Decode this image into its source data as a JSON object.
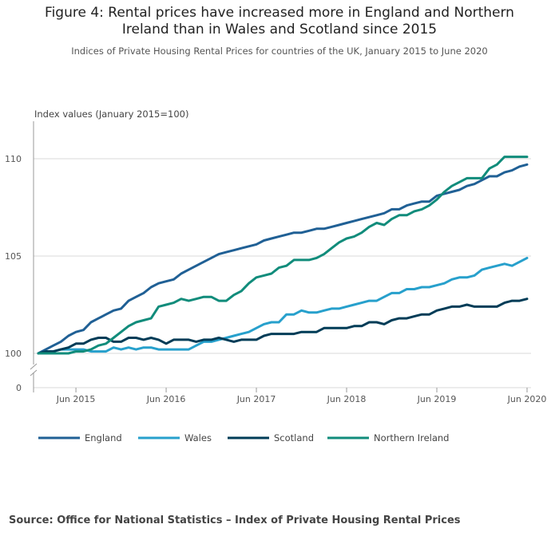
{
  "header": {
    "title_line1": "Figure 4: Rental prices have increased more in England and Northern",
    "title_line2": "Ireland than in Wales and Scotland since 2015",
    "subtitle": "Indices of Private Housing Rental Prices for countries of the UK, January 2015 to June 2020"
  },
  "source": "Source: Office for National Statistics – Index of Private Housing Rental Prices",
  "colors": {
    "england": "#206095",
    "wales": "#27a0cc",
    "scotland": "#003c57",
    "northern_ireland": "#118c7b",
    "grid": "#d9d9d9",
    "axis": "#999999"
  },
  "chart_data": {
    "type": "line",
    "title": "Figure 4: Rental prices have increased more in England and Northern Ireland than in Wales and Scotland since 2015",
    "subtitle": "Indices of Private Housing Rental Prices for countries of the UK, January 2015 to June 2020",
    "ylabel": "Index values (January 2015=100)",
    "xlabel": "",
    "ylim": [
      100,
      111
    ],
    "y_ticks": [
      100,
      105,
      110
    ],
    "y_break": true,
    "y_zero_label": "0",
    "x_start": "Jan 2015",
    "x_ticks": [
      {
        "index": 5,
        "label": "Jun 2015"
      },
      {
        "index": 17,
        "label": "Jun 2016"
      },
      {
        "index": 29,
        "label": "Jun 2017"
      },
      {
        "index": 41,
        "label": "Jun 2018"
      },
      {
        "index": 53,
        "label": "Jun 2019"
      },
      {
        "index": 65,
        "label": "Jun 2020"
      }
    ],
    "legend_position": "bottom",
    "series": [
      {
        "name": "England",
        "key": "england",
        "values": [
          100.0,
          100.2,
          100.4,
          100.6,
          100.9,
          101.1,
          101.2,
          101.6,
          101.8,
          102.0,
          102.2,
          102.3,
          102.7,
          102.9,
          103.1,
          103.4,
          103.6,
          103.7,
          103.8,
          104.1,
          104.3,
          104.5,
          104.7,
          104.9,
          105.1,
          105.2,
          105.3,
          105.4,
          105.5,
          105.6,
          105.8,
          105.9,
          106.0,
          106.1,
          106.2,
          106.2,
          106.3,
          106.4,
          106.4,
          106.5,
          106.6,
          106.7,
          106.8,
          106.9,
          107.0,
          107.1,
          107.2,
          107.4,
          107.4,
          107.6,
          107.7,
          107.8,
          107.8,
          108.1,
          108.2,
          108.3,
          108.4,
          108.6,
          108.7,
          108.9,
          109.1,
          109.1,
          109.3,
          109.4,
          109.6,
          109.7
        ]
      },
      {
        "name": "Wales",
        "key": "wales",
        "values": [
          100.0,
          100.1,
          100.1,
          100.2,
          100.2,
          100.2,
          100.2,
          100.1,
          100.1,
          100.1,
          100.3,
          100.2,
          100.3,
          100.2,
          100.3,
          100.3,
          100.2,
          100.2,
          100.2,
          100.2,
          100.2,
          100.4,
          100.6,
          100.6,
          100.7,
          100.8,
          100.9,
          101.0,
          101.1,
          101.3,
          101.5,
          101.6,
          101.6,
          102.0,
          102.0,
          102.2,
          102.1,
          102.1,
          102.2,
          102.3,
          102.3,
          102.4,
          102.5,
          102.6,
          102.7,
          102.7,
          102.9,
          103.1,
          103.1,
          103.3,
          103.3,
          103.4,
          103.4,
          103.5,
          103.6,
          103.8,
          103.9,
          103.9,
          104.0,
          104.3,
          104.4,
          104.5,
          104.6,
          104.5,
          104.7,
          104.9
        ]
      },
      {
        "name": "Scotland",
        "key": "scotland",
        "values": [
          100.0,
          100.1,
          100.1,
          100.2,
          100.3,
          100.5,
          100.5,
          100.7,
          100.8,
          100.8,
          100.6,
          100.6,
          100.8,
          100.8,
          100.7,
          100.8,
          100.7,
          100.5,
          100.7,
          100.7,
          100.7,
          100.6,
          100.7,
          100.7,
          100.8,
          100.7,
          100.6,
          100.7,
          100.7,
          100.7,
          100.9,
          101.0,
          101.0,
          101.0,
          101.0,
          101.1,
          101.1,
          101.1,
          101.3,
          101.3,
          101.3,
          101.3,
          101.4,
          101.4,
          101.6,
          101.6,
          101.5,
          101.7,
          101.8,
          101.8,
          101.9,
          102.0,
          102.0,
          102.2,
          102.3,
          102.4,
          102.4,
          102.5,
          102.4,
          102.4,
          102.4,
          102.4,
          102.6,
          102.7,
          102.7,
          102.8
        ]
      },
      {
        "name": "Northern Ireland",
        "key": "northern_ireland",
        "values": [
          100.0,
          100.0,
          100.0,
          100.0,
          100.0,
          100.1,
          100.1,
          100.2,
          100.4,
          100.5,
          100.8,
          101.1,
          101.4,
          101.6,
          101.7,
          101.8,
          102.4,
          102.5,
          102.6,
          102.8,
          102.7,
          102.8,
          102.9,
          102.9,
          102.7,
          102.7,
          103.0,
          103.2,
          103.6,
          103.9,
          104.0,
          104.1,
          104.4,
          104.5,
          104.8,
          104.8,
          104.8,
          104.9,
          105.1,
          105.4,
          105.7,
          105.9,
          106.0,
          106.2,
          106.5,
          106.7,
          106.6,
          106.9,
          107.1,
          107.1,
          107.3,
          107.4,
          107.6,
          107.9,
          108.3,
          108.6,
          108.8,
          109.0,
          109.0,
          109.0,
          109.5,
          109.7,
          110.1,
          110.1,
          110.1,
          110.1
        ]
      }
    ]
  }
}
